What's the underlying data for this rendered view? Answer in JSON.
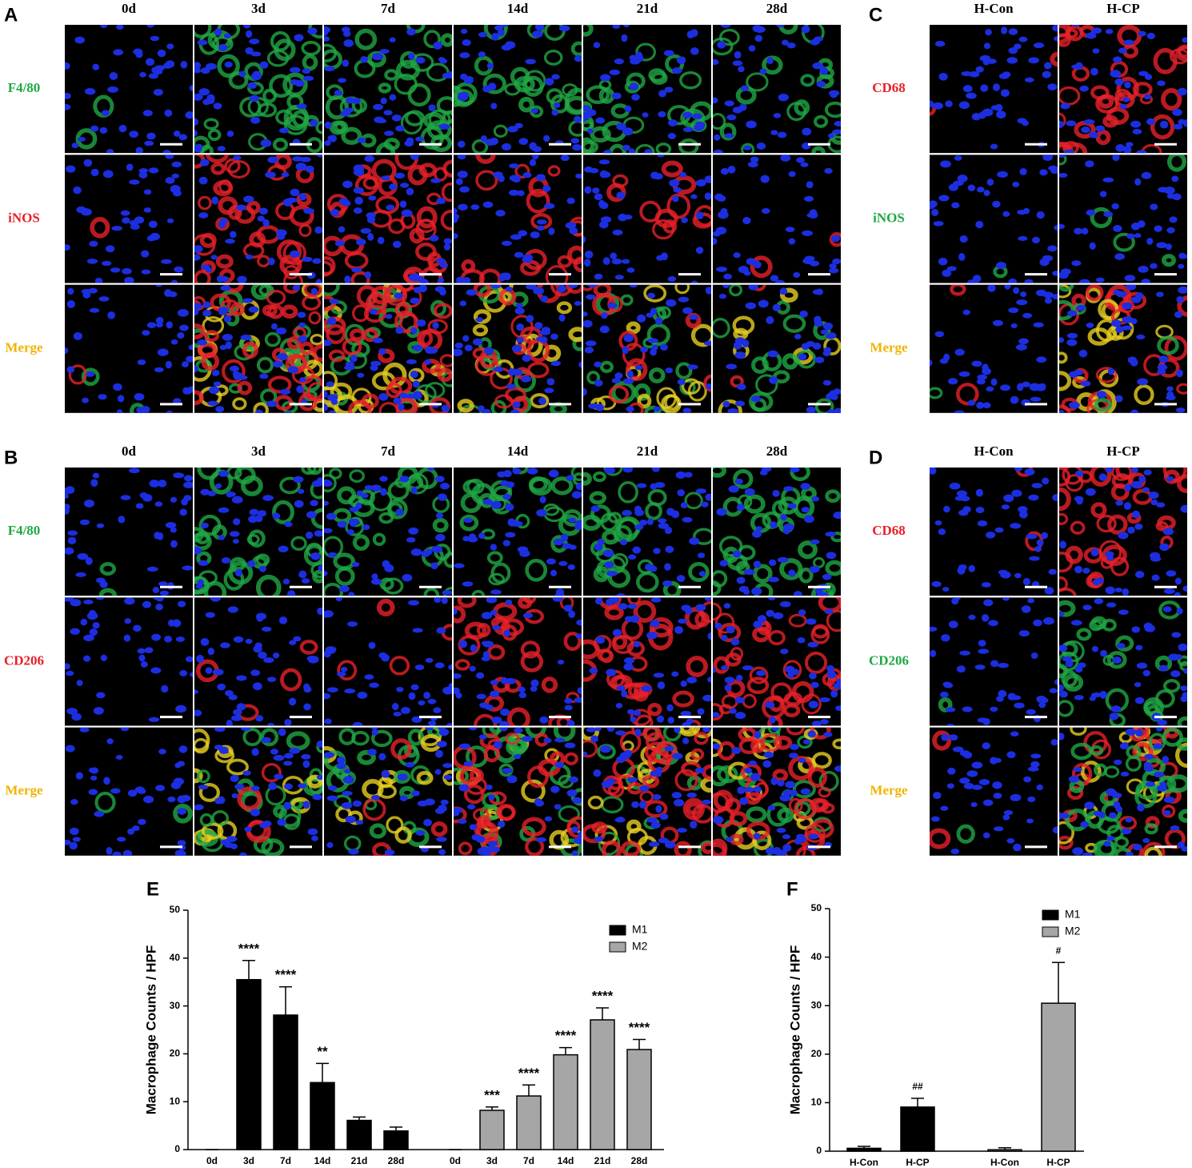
{
  "panels": [
    {
      "label": "A",
      "columns": [
        "0d",
        "3d",
        "7d",
        "14d",
        "21d",
        "28d"
      ],
      "rows": [
        {
          "label": "F4/80",
          "color": "#1fa845"
        },
        {
          "label": "iNOS",
          "color": "#e8202a"
        },
        {
          "label": "Merge",
          "color": "#f0b400"
        }
      ]
    },
    {
      "label": "B",
      "columns": [
        "0d",
        "3d",
        "7d",
        "14d",
        "21d",
        "28d"
      ],
      "rows": [
        {
          "label": "F4/80",
          "color": "#1fa845"
        },
        {
          "label": "CD206",
          "color": "#e8202a"
        },
        {
          "label": "Merge",
          "color": "#f0b400"
        }
      ]
    },
    {
      "label": "C",
      "columns": [
        "H-Con",
        "H-CP"
      ],
      "rows": [
        {
          "label": "CD68",
          "color": "#e8202a"
        },
        {
          "label": "iNOS",
          "color": "#1fa845"
        },
        {
          "label": "Merge",
          "color": "#f0b400"
        }
      ]
    },
    {
      "label": "D",
      "columns": [
        "H-Con",
        "H-CP"
      ],
      "rows": [
        {
          "label": "CD68",
          "color": "#e8202a"
        },
        {
          "label": "CD206",
          "color": "#1fa845"
        },
        {
          "label": "Merge",
          "color": "#f0b400"
        }
      ]
    }
  ],
  "chart_data": [
    {
      "type": "bar",
      "label": "E",
      "ylabel": "Macrophage Counts / HPF",
      "categories": [
        "0d",
        "3d",
        "7d",
        "14d",
        "21d",
        "28d",
        "0d",
        "3d",
        "7d",
        "14d",
        "21d",
        "28d"
      ],
      "ylim": [
        0,
        50
      ],
      "yticks": [
        0,
        10,
        20,
        30,
        40,
        50
      ],
      "series": [
        {
          "name": "M1",
          "color": "#000000",
          "values": [
            0,
            35.5,
            28.1,
            14,
            6.1,
            3.9,
            null,
            null,
            null,
            null,
            null,
            null
          ],
          "errors": [
            0,
            4,
            5.9,
            4,
            0.7,
            0.8,
            null,
            null,
            null,
            null,
            null,
            null
          ],
          "annotations": [
            null,
            "****",
            "****",
            "**",
            null,
            null,
            null,
            null,
            null,
            null,
            null,
            null
          ]
        },
        {
          "name": "M2",
          "color": "#a6a6a6",
          "values": [
            null,
            null,
            null,
            null,
            null,
            null,
            0,
            8.2,
            11.2,
            19.8,
            27.1,
            20.9
          ],
          "errors": [
            null,
            null,
            null,
            null,
            null,
            null,
            0,
            0.7,
            2.3,
            1.5,
            2.5,
            2.1
          ],
          "annotations": [
            null,
            null,
            null,
            null,
            null,
            null,
            null,
            "***",
            "****",
            "****",
            "****",
            "****"
          ]
        }
      ]
    },
    {
      "type": "bar",
      "label": "F",
      "ylabel": "Macrophage Counts / HPF",
      "categories": [
        "H-Con",
        "H-CP",
        "H-Con",
        "H-CP"
      ],
      "ylim": [
        0,
        50
      ],
      "yticks": [
        0,
        10,
        20,
        30,
        40,
        50
      ],
      "series": [
        {
          "name": "M1",
          "color": "#000000",
          "values": [
            0.6,
            9.1,
            null,
            null
          ],
          "errors": [
            0.4,
            1.8,
            null,
            null
          ],
          "annotations": [
            null,
            "##",
            null,
            null
          ]
        },
        {
          "name": "M2",
          "color": "#a6a6a6",
          "values": [
            null,
            null,
            0.3,
            30.5
          ],
          "errors": [
            null,
            null,
            0.4,
            8.4
          ],
          "annotations": [
            null,
            null,
            null,
            "#"
          ]
        }
      ]
    }
  ]
}
